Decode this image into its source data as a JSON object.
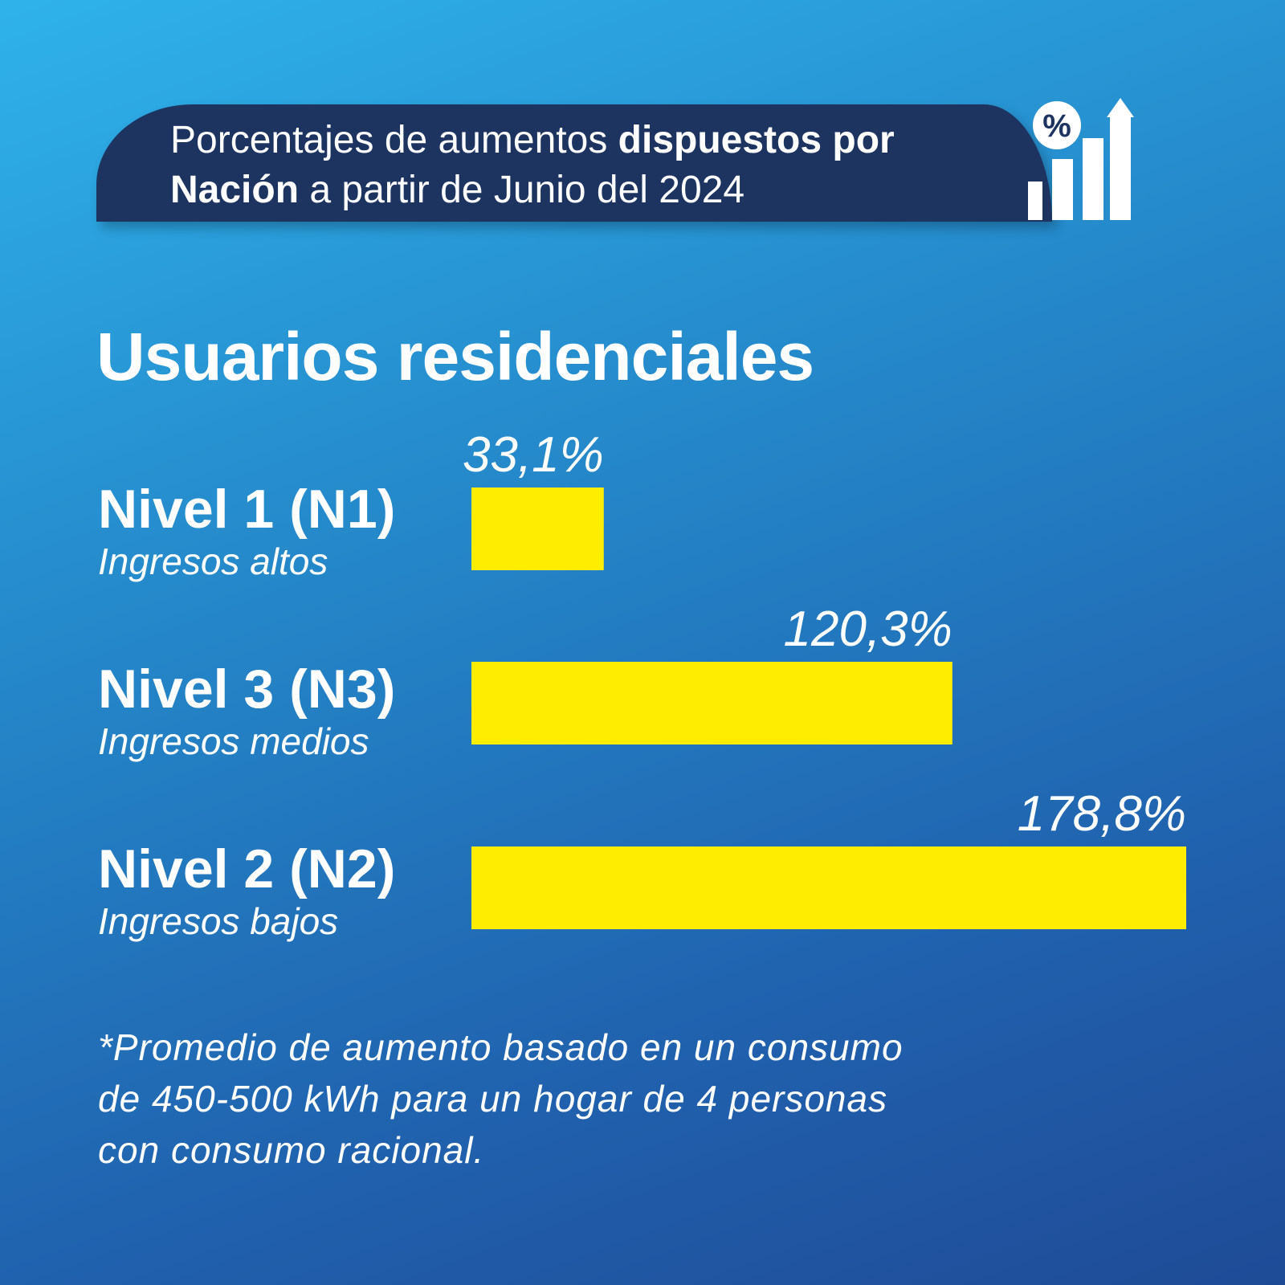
{
  "header": {
    "title_part1": "Porcentajes de aumentos ",
    "title_bold1": "dispuestos por",
    "title_bold2": "Nación",
    "title_part2": " a partir de Junio del 2024",
    "icon": "percent-growth-chart-icon",
    "icon_symbol": "%"
  },
  "colors": {
    "banner": "#1d3461",
    "bar": "#ffed00",
    "text": "#ffffff"
  },
  "chart_data": {
    "type": "bar",
    "orientation": "horizontal",
    "title": "Usuarios residenciales",
    "categories": [
      "Nivel 1 (N1)",
      "Nivel 3 (N3)",
      "Nivel 2 (N2)"
    ],
    "subcategories": [
      "Ingresos altos",
      "Ingresos medios",
      "Ingresos bajos"
    ],
    "values": [
      33.1,
      120.3,
      178.8
    ],
    "value_labels": [
      "33,1%",
      "120,3%",
      "178,8%"
    ],
    "unit": "%",
    "xlim": [
      0,
      178.8
    ]
  },
  "footnote": {
    "line1": "*Promedio de aumento basado en un consumo",
    "line2": "de 450-500 kWh para un hogar de 4 personas",
    "line3": "con consumo racional."
  }
}
